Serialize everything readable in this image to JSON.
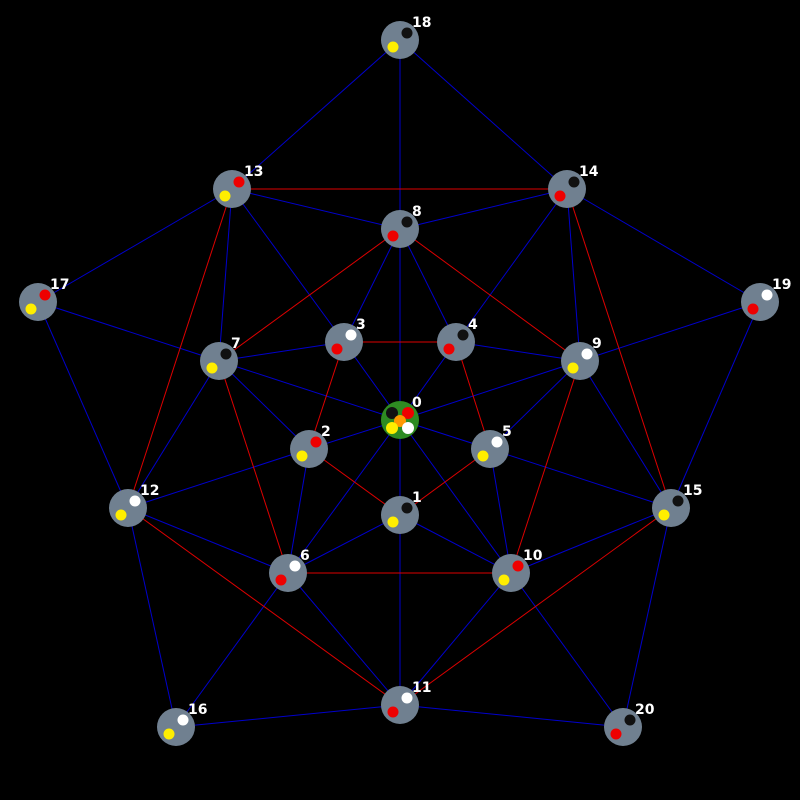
{
  "graph": {
    "background": "#000000",
    "node_color": "#708090",
    "center_node_color": "#2e8b22",
    "edge_colors": {
      "blue": "#0000cc",
      "red": "#dd0000"
    },
    "dot_colors": {
      "black": "#111111",
      "white": "#ffffff",
      "red": "#ee0000",
      "yellow": "#ffee00",
      "orange": "#ff9900"
    },
    "nodes": [
      {
        "id": "0",
        "label": "0",
        "dots": [
          "black",
          "red",
          "orange",
          "yellow",
          "white"
        ]
      },
      {
        "id": "1",
        "label": "1",
        "dots": [
          "black",
          "yellow"
        ]
      },
      {
        "id": "2",
        "label": "2",
        "dots": [
          "red",
          "yellow"
        ]
      },
      {
        "id": "3",
        "label": "3",
        "dots": [
          "white",
          "red"
        ]
      },
      {
        "id": "4",
        "label": "4",
        "dots": [
          "black",
          "red"
        ]
      },
      {
        "id": "5",
        "label": "5",
        "dots": [
          "white",
          "yellow"
        ]
      },
      {
        "id": "6",
        "label": "6",
        "dots": [
          "white",
          "red"
        ]
      },
      {
        "id": "7",
        "label": "7",
        "dots": [
          "black",
          "yellow"
        ]
      },
      {
        "id": "8",
        "label": "8",
        "dots": [
          "black",
          "red"
        ]
      },
      {
        "id": "9",
        "label": "9",
        "dots": [
          "white",
          "yellow"
        ]
      },
      {
        "id": "10",
        "label": "10",
        "dots": [
          "red",
          "yellow"
        ]
      },
      {
        "id": "11",
        "label": "11",
        "dots": [
          "white",
          "red"
        ]
      },
      {
        "id": "12",
        "label": "12",
        "dots": [
          "white",
          "yellow"
        ]
      },
      {
        "id": "13",
        "label": "13",
        "dots": [
          "red",
          "yellow"
        ]
      },
      {
        "id": "14",
        "label": "14",
        "dots": [
          "black",
          "red"
        ]
      },
      {
        "id": "15",
        "label": "15",
        "dots": [
          "black",
          "yellow"
        ]
      },
      {
        "id": "16",
        "label": "16",
        "dots": [
          "white",
          "yellow"
        ]
      },
      {
        "id": "17",
        "label": "17",
        "dots": [
          "red",
          "yellow"
        ]
      },
      {
        "id": "18",
        "label": "18",
        "dots": [
          "black",
          "yellow"
        ]
      },
      {
        "id": "19",
        "label": "19",
        "dots": [
          "white",
          "red"
        ]
      },
      {
        "id": "20",
        "label": "20",
        "dots": [
          "black",
          "red"
        ]
      }
    ],
    "edges": [
      {
        "from": "0",
        "to": "1",
        "color": "blue"
      },
      {
        "from": "0",
        "to": "2",
        "color": "blue"
      },
      {
        "from": "0",
        "to": "3",
        "color": "blue"
      },
      {
        "from": "0",
        "to": "4",
        "color": "blue"
      },
      {
        "from": "0",
        "to": "5",
        "color": "blue"
      },
      {
        "from": "0",
        "to": "6",
        "color": "blue"
      },
      {
        "from": "0",
        "to": "7",
        "color": "blue"
      },
      {
        "from": "0",
        "to": "8",
        "color": "blue"
      },
      {
        "from": "0",
        "to": "9",
        "color": "blue"
      },
      {
        "from": "0",
        "to": "10",
        "color": "blue"
      },
      {
        "from": "1",
        "to": "2",
        "color": "red"
      },
      {
        "from": "1",
        "to": "5",
        "color": "red"
      },
      {
        "from": "2",
        "to": "3",
        "color": "red"
      },
      {
        "from": "3",
        "to": "4",
        "color": "red"
      },
      {
        "from": "4",
        "to": "5",
        "color": "red"
      },
      {
        "from": "1",
        "to": "6",
        "color": "blue"
      },
      {
        "from": "1",
        "to": "10",
        "color": "blue"
      },
      {
        "from": "1",
        "to": "11",
        "color": "blue"
      },
      {
        "from": "2",
        "to": "6",
        "color": "blue"
      },
      {
        "from": "2",
        "to": "7",
        "color": "blue"
      },
      {
        "from": "2",
        "to": "12",
        "color": "blue"
      },
      {
        "from": "3",
        "to": "7",
        "color": "blue"
      },
      {
        "from": "3",
        "to": "8",
        "color": "blue"
      },
      {
        "from": "3",
        "to": "13",
        "color": "blue"
      },
      {
        "from": "4",
        "to": "8",
        "color": "blue"
      },
      {
        "from": "4",
        "to": "9",
        "color": "blue"
      },
      {
        "from": "4",
        "to": "14",
        "color": "blue"
      },
      {
        "from": "5",
        "to": "9",
        "color": "blue"
      },
      {
        "from": "5",
        "to": "10",
        "color": "blue"
      },
      {
        "from": "5",
        "to": "15",
        "color": "blue"
      },
      {
        "from": "6",
        "to": "10",
        "color": "red"
      },
      {
        "from": "6",
        "to": "7",
        "color": "red"
      },
      {
        "from": "7",
        "to": "8",
        "color": "red"
      },
      {
        "from": "8",
        "to": "9",
        "color": "red"
      },
      {
        "from": "9",
        "to": "10",
        "color": "red"
      },
      {
        "from": "6",
        "to": "11",
        "color": "blue"
      },
      {
        "from": "6",
        "to": "12",
        "color": "blue"
      },
      {
        "from": "6",
        "to": "16",
        "color": "blue"
      },
      {
        "from": "7",
        "to": "12",
        "color": "blue"
      },
      {
        "from": "7",
        "to": "13",
        "color": "blue"
      },
      {
        "from": "7",
        "to": "17",
        "color": "blue"
      },
      {
        "from": "8",
        "to": "13",
        "color": "blue"
      },
      {
        "from": "8",
        "to": "14",
        "color": "blue"
      },
      {
        "from": "8",
        "to": "18",
        "color": "blue"
      },
      {
        "from": "9",
        "to": "14",
        "color": "blue"
      },
      {
        "from": "9",
        "to": "15",
        "color": "blue"
      },
      {
        "from": "9",
        "to": "19",
        "color": "blue"
      },
      {
        "from": "10",
        "to": "11",
        "color": "blue"
      },
      {
        "from": "10",
        "to": "15",
        "color": "blue"
      },
      {
        "from": "10",
        "to": "20",
        "color": "blue"
      },
      {
        "from": "11",
        "to": "12",
        "color": "red"
      },
      {
        "from": "11",
        "to": "15",
        "color": "red"
      },
      {
        "from": "12",
        "to": "13",
        "color": "red"
      },
      {
        "from": "13",
        "to": "14",
        "color": "red"
      },
      {
        "from": "14",
        "to": "15",
        "color": "red"
      },
      {
        "from": "11",
        "to": "16",
        "color": "blue"
      },
      {
        "from": "11",
        "to": "20",
        "color": "blue"
      },
      {
        "from": "12",
        "to": "16",
        "color": "blue"
      },
      {
        "from": "12",
        "to": "17",
        "color": "blue"
      },
      {
        "from": "13",
        "to": "17",
        "color": "blue"
      },
      {
        "from": "13",
        "to": "18",
        "color": "blue"
      },
      {
        "from": "14",
        "to": "18",
        "color": "blue"
      },
      {
        "from": "14",
        "to": "19",
        "color": "blue"
      },
      {
        "from": "15",
        "to": "19",
        "color": "blue"
      },
      {
        "from": "15",
        "to": "20",
        "color": "blue"
      }
    ]
  }
}
